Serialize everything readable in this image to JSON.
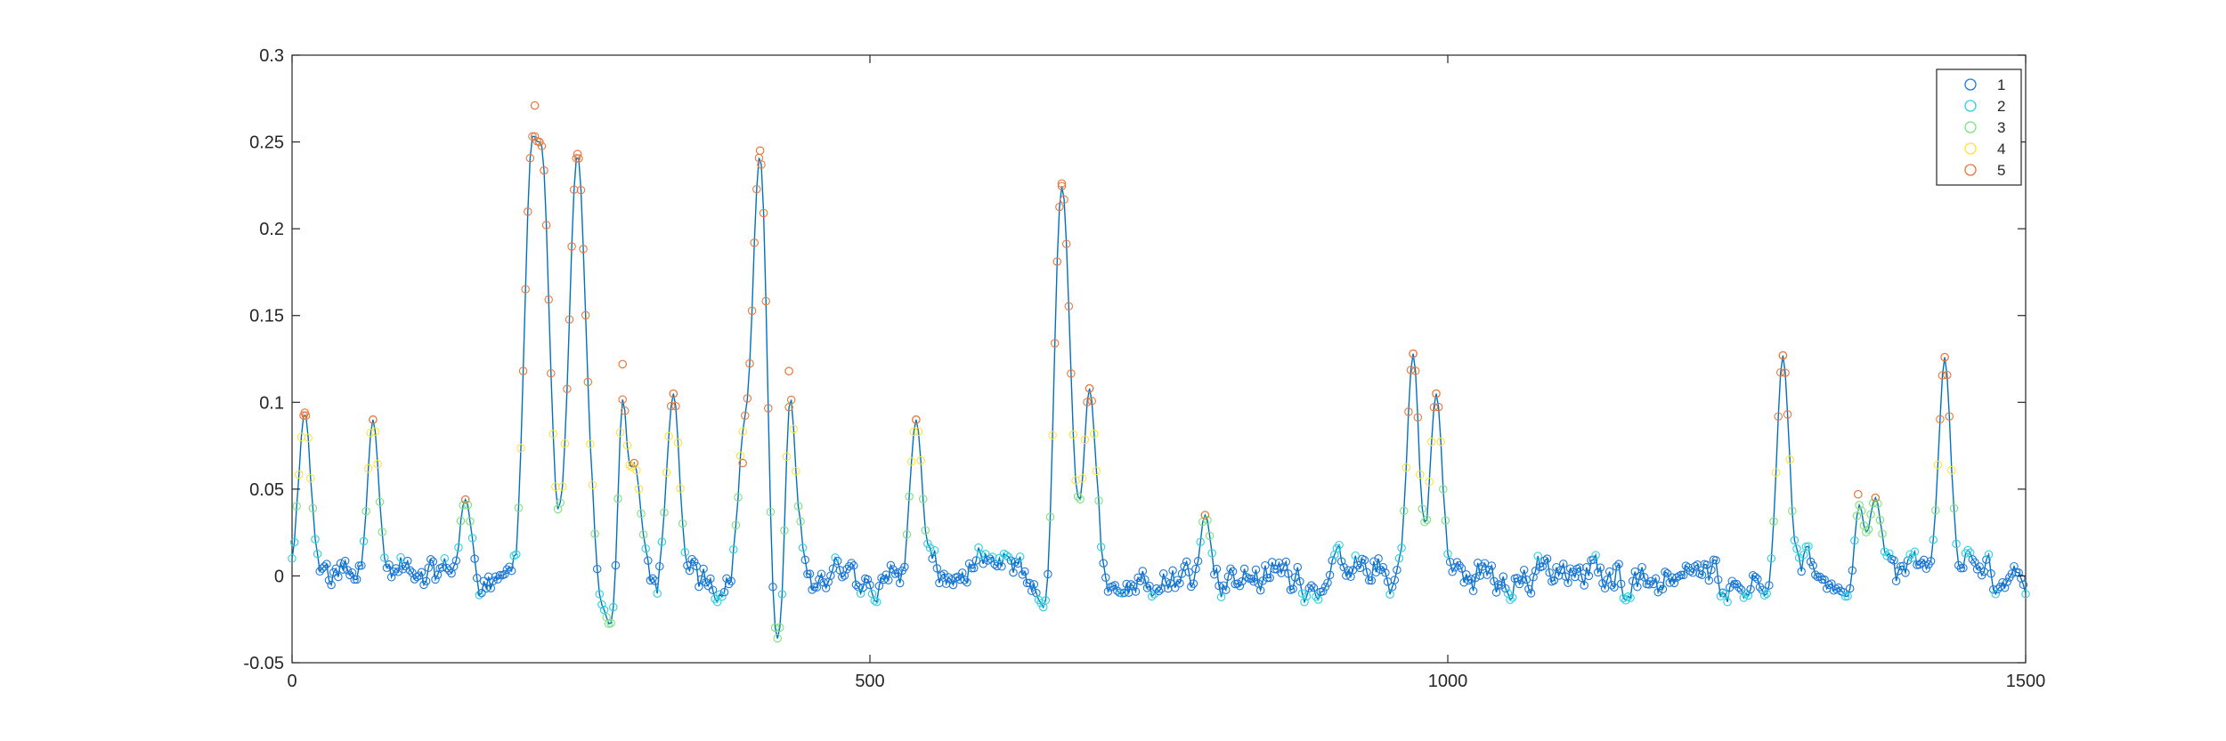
{
  "chart_data": {
    "type": "scatter",
    "title": "",
    "xlabel": "",
    "ylabel": "",
    "xlim": [
      0,
      1500
    ],
    "ylim": [
      -0.05,
      0.3
    ],
    "xticks": [
      0,
      500,
      1000,
      1500
    ],
    "xtick_labels": [
      "0",
      "500",
      "1000",
      "1500"
    ],
    "yticks": [
      -0.05,
      0,
      0.05,
      0.1,
      0.15,
      0.2,
      0.25,
      0.3
    ],
    "ytick_labels": [
      "-0.05",
      "0",
      "0.05",
      "0.1",
      "0.15",
      "0.2",
      "0.25",
      "0.3"
    ],
    "grid": false,
    "legend_position": "top-right",
    "line_color": "#0072bd",
    "legend": [
      {
        "label": "1",
        "color": "#1f78d8"
      },
      {
        "label": "2",
        "color": "#2ad0e0"
      },
      {
        "label": "3",
        "color": "#7ae27a"
      },
      {
        "label": "4",
        "color": "#ffe135"
      },
      {
        "label": "5",
        "color": "#e8773a"
      }
    ],
    "baseline_noise_range": [
      -0.015,
      0.02
    ],
    "peaks": [
      {
        "x": 11,
        "y": 0.094
      },
      {
        "x": 70,
        "y": 0.09
      },
      {
        "x": 150,
        "y": 0.044
      },
      {
        "x": 210,
        "y": 0.271
      },
      {
        "x": 214,
        "y": 0.25
      },
      {
        "x": 247,
        "y": 0.243
      },
      {
        "x": 286,
        "y": 0.122
      },
      {
        "x": 296,
        "y": 0.065
      },
      {
        "x": 330,
        "y": 0.105
      },
      {
        "x": 390,
        "y": 0.065
      },
      {
        "x": 405,
        "y": 0.245
      },
      {
        "x": 430,
        "y": 0.118
      },
      {
        "x": 540,
        "y": 0.09
      },
      {
        "x": 666,
        "y": 0.226
      },
      {
        "x": 690,
        "y": 0.108
      },
      {
        "x": 790,
        "y": 0.035
      },
      {
        "x": 970,
        "y": 0.128
      },
      {
        "x": 990,
        "y": 0.105
      },
      {
        "x": 1290,
        "y": 0.127
      },
      {
        "x": 1355,
        "y": 0.047
      },
      {
        "x": 1370,
        "y": 0.045
      },
      {
        "x": 1430,
        "y": 0.126
      }
    ],
    "troughs": [
      {
        "x": 275,
        "y": -0.028
      },
      {
        "x": 420,
        "y": -0.036
      },
      {
        "x": 650,
        "y": -0.018
      },
      {
        "x": 1345,
        "y": -0.012
      }
    ]
  }
}
